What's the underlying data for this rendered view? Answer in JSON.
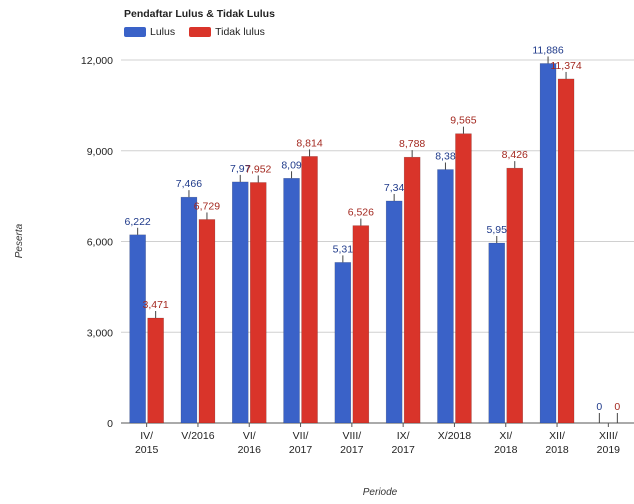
{
  "chart_data": {
    "type": "bar",
    "title": "Pendaftar Lulus & Tidak Lulus",
    "xlabel": "Periode",
    "ylabel": "Peserta",
    "ylim": [
      0,
      12000
    ],
    "yticks": [
      "0",
      "3,000",
      "6,000",
      "9,000",
      "12,000"
    ],
    "ytick_values": [
      0,
      3000,
      6000,
      9000,
      12000
    ],
    "grid": true,
    "legend_position": "top-left",
    "categories": [
      [
        "IV/",
        "2015"
      ],
      [
        "V/2016"
      ],
      [
        "VI/",
        "2016"
      ],
      [
        "VII/",
        "2017"
      ],
      [
        "VIII/",
        "2017"
      ],
      [
        "IX/",
        "2017"
      ],
      [
        "X/2018"
      ],
      [
        "XI/",
        "2018"
      ],
      [
        "XII/",
        "2018"
      ],
      [
        "XIII/",
        "2019"
      ]
    ],
    "series": [
      {
        "name": "Lulus",
        "color": "#3a62c8",
        "label_color": "#1f3a8a",
        "values": [
          6222,
          7466,
          7970,
          8090,
          5310,
          7340,
          8380,
          5950,
          11886,
          0
        ],
        "labels": [
          "6,222",
          "7,466",
          "7,97",
          "8,09",
          "5,31",
          "7,34",
          "8,38",
          "5,95",
          "11,886",
          "0"
        ]
      },
      {
        "name": "Tidak lulus",
        "color": "#d9342a",
        "label_color": "#a3281f",
        "values": [
          3471,
          6729,
          7952,
          8814,
          6526,
          8788,
          9565,
          8426,
          11374,
          0
        ],
        "labels": [
          "3,471",
          "6,729",
          "7,952",
          "8,814",
          "6,526",
          "8,788",
          "9,565",
          "8,426",
          "11,374",
          "0"
        ]
      }
    ]
  }
}
